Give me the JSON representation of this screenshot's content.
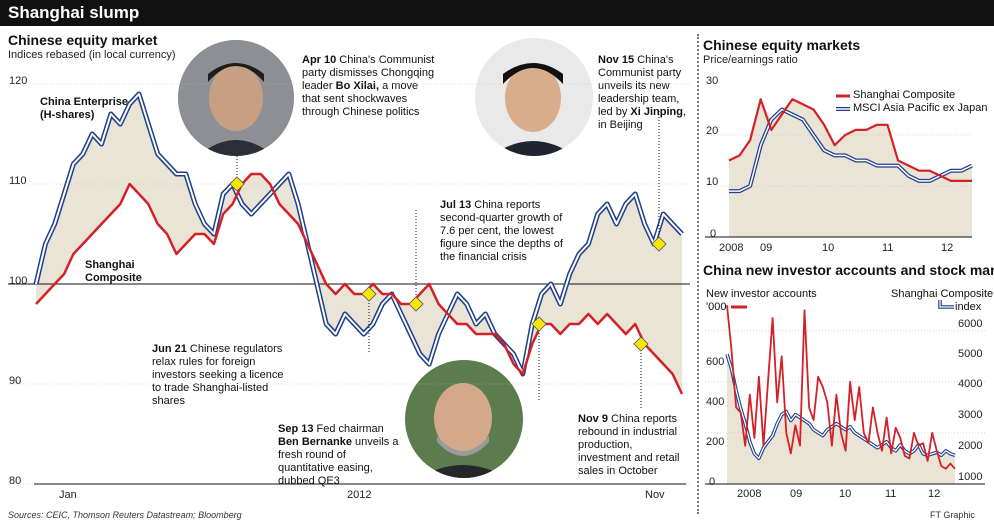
{
  "header": {
    "title": "Shanghai slump"
  },
  "left_chart": {
    "title": "Chinese equity market",
    "subtitle": "Indices rebased (in local currency)",
    "series_labels": {
      "china_enterprise": [
        "China Enterprise",
        "(H-shares)"
      ],
      "shanghai": [
        "Shanghai",
        "Composite"
      ]
    }
  },
  "annotations": {
    "apr10": {
      "date": "Apr 10",
      "text": " China's Communist party dismisses Chongqing leader ",
      "bold": "Bo Xilai,",
      "text2": " a move that sent shockwaves through Chinese politics"
    },
    "nov15": {
      "date": "Nov 15",
      "text": " China's Communist party unveils its new leadership team, led by ",
      "bold": "Xi Jinping",
      "text2": ", in Beijing"
    },
    "jul13": {
      "date": "Jul 13",
      "text": " China reports second-quarter growth of 7.6 per cent, the lowest figure since the depths of the financial crisis"
    },
    "jun21": {
      "date": "Jun 21",
      "text": " Chinese regulators relax rules for foreign investors seeking a licence to trade Shanghai-listed shares"
    },
    "sep13": {
      "date": "Sep 13",
      "text": " Fed chairman ",
      "bold": "Ben Bernanke",
      "text2": " unveils a fresh round of quantitative easing, dubbed QE3"
    },
    "nov9": {
      "date": "Nov 9",
      "text": " China reports rebound in industrial production, investment and retail sales in October"
    }
  },
  "right_top": {
    "title": "Chinese equity markets",
    "subtitle": "Price/earnings ratio"
  },
  "right_bottom": {
    "title": "China new investor accounts and stock market",
    "left_axis_label": [
      "New investor accounts",
      "'000"
    ],
    "right_axis_label": [
      "Shanghai Composite",
      "index"
    ]
  },
  "footer": {
    "sources": "Sources: CEIC, Thomson Reuters Datastream; Bloomberg",
    "credit": "FT Graphic"
  },
  "colors": {
    "red": "#d42027",
    "blue": "#1f3e8c",
    "fill": "#e9e4d6",
    "marker": "#f7e600"
  },
  "chart_data": [
    {
      "type": "line",
      "title": "Chinese equity market",
      "ylim": [
        80,
        120
      ],
      "yticks": [
        80,
        90,
        100,
        110,
        120
      ],
      "xticks": [
        "Jan",
        "2012",
        "Nov"
      ],
      "reference_line": 100,
      "series": [
        {
          "name": "China Enterprise (H-shares)",
          "color": "#1f3e8c",
          "values": [
            100,
            104,
            106,
            109,
            112,
            113,
            115,
            114,
            117,
            116,
            118,
            119,
            116,
            113,
            112,
            111,
            111,
            108,
            106,
            105,
            109,
            110,
            108,
            107,
            108,
            109,
            110,
            111,
            108,
            104,
            100,
            96,
            95,
            97,
            96,
            95,
            96,
            98,
            99,
            97,
            95,
            93,
            92,
            95,
            97,
            99,
            98,
            96,
            97,
            95,
            94,
            93,
            91,
            96,
            99,
            100,
            98,
            101,
            103,
            104,
            107,
            108,
            106,
            108,
            109,
            106,
            104,
            107,
            106,
            105
          ]
        },
        {
          "name": "Shanghai Composite",
          "color": "#d42027",
          "values": [
            98,
            99,
            100,
            101,
            103,
            104,
            105,
            106,
            107,
            108,
            110,
            109,
            108,
            106,
            105,
            103,
            104,
            105,
            105,
            104,
            107,
            108,
            110,
            111,
            111,
            110,
            108,
            107,
            106,
            104,
            102,
            100,
            99,
            100,
            99,
            99,
            100,
            99,
            99,
            98,
            98,
            99,
            100,
            98,
            97,
            96,
            96,
            95,
            95,
            95,
            94,
            92,
            91,
            94,
            96,
            96,
            95,
            96,
            96,
            97,
            96,
            97,
            96,
            95,
            96,
            94,
            93,
            92,
            91,
            89
          ]
        }
      ],
      "events": [
        {
          "label": "Apr 10",
          "value": 110
        },
        {
          "label": "Jun 21",
          "value": 99
        },
        {
          "label": "Jul 13",
          "value": 98
        },
        {
          "label": "Sep 13",
          "value": 96
        },
        {
          "label": "Nov 9",
          "value": 94
        },
        {
          "label": "Nov 15",
          "value": 104
        }
      ]
    },
    {
      "type": "line",
      "title": "Chinese equity markets",
      "subtitle": "Price/earnings ratio",
      "ylim": [
        0,
        30
      ],
      "yticks": [
        0,
        10,
        20
      ],
      "xticks": [
        "2008",
        "09",
        "10",
        "11",
        "12"
      ],
      "series": [
        {
          "name": "Shanghai Composite",
          "color": "#d42027",
          "values": [
            15,
            16,
            19,
            27,
            21,
            24,
            27,
            26,
            25,
            22,
            18,
            20,
            21,
            21,
            22,
            22,
            15,
            14,
            13,
            13,
            12,
            11,
            11,
            11
          ]
        },
        {
          "name": "MSCI Asia Pacific ex Japan",
          "color": "#1f3e8c",
          "values": [
            9,
            9,
            10,
            18,
            23,
            25,
            24,
            23,
            20,
            17,
            16,
            16,
            15,
            15,
            14,
            14,
            14,
            12,
            11,
            11,
            12,
            13,
            13,
            14
          ]
        }
      ]
    },
    {
      "type": "line",
      "title": "China new investor accounts and stock market",
      "xticks": [
        "2008",
        "09",
        "10",
        "11",
        "12"
      ],
      "left_axis": {
        "label": "New investor accounts '000",
        "ylim": [
          0,
          700
        ],
        "yticks": [
          200,
          400,
          600
        ]
      },
      "right_axis": {
        "label": "Shanghai Composite index",
        "ylim": [
          1000,
          6500
        ],
        "yticks": [
          1000,
          2000,
          3000,
          4000,
          5000,
          6000
        ]
      },
      "series": [
        {
          "name": "New investor accounts",
          "axis": "left",
          "color": "#d42027",
          "values": [
            700,
            520,
            300,
            280,
            150,
            350,
            180,
            420,
            150,
            400,
            650,
            320,
            500,
            200,
            120,
            230,
            150,
            680,
            300,
            250,
            420,
            380,
            320,
            150,
            350,
            200,
            130,
            400,
            250,
            380,
            200,
            160,
            300,
            200,
            130,
            260,
            120,
            220,
            180,
            110,
            100,
            200,
            150,
            160,
            90,
            200,
            130,
            70,
            60,
            80,
            60
          ]
        },
        {
          "name": "Shanghai Composite",
          "axis": "right",
          "color": "#1f3e8c",
          "values": [
            5300,
            4800,
            4100,
            3500,
            3000,
            2400,
            2000,
            1850,
            2200,
            2400,
            2600,
            3000,
            3300,
            3400,
            3100,
            3300,
            3200,
            3100,
            3000,
            2800,
            2700,
            2600,
            2800,
            2900,
            3000,
            2900,
            2800,
            2900,
            2700,
            2600,
            2500,
            2400,
            2300,
            2200,
            2300,
            2400,
            2200,
            2100,
            2300,
            2100,
            2000,
            2100,
            2300,
            2000,
            1950,
            2000,
            2050,
            1950,
            2100,
            2000,
            1950
          ]
        }
      ]
    }
  ]
}
